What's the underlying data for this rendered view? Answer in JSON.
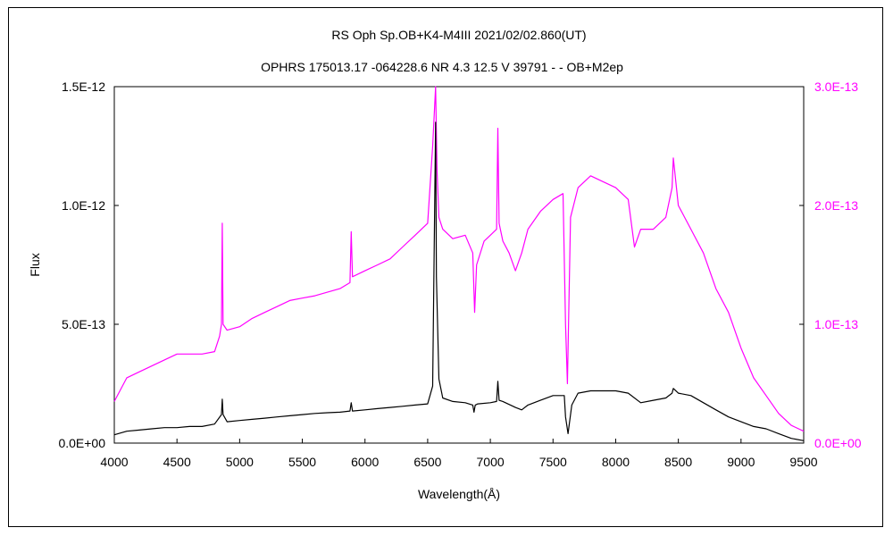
{
  "chart_data": {
    "type": "line",
    "title": "RS Oph    Sp.OB+K4-M4III    2021/02/02.860(UT)",
    "subtitle": "OPHRS 175013.17 -064228.6 NR 4.3 12.5 V 39791 - - OB+M2ep",
    "xlabel": "Wavelength(Å)",
    "ylabel": "Flux",
    "xlim": [
      4000,
      9500
    ],
    "ylim": [
      0,
      1.5e-12
    ],
    "ylim_right": [
      0,
      3e-13
    ],
    "x_ticks": [
      "4000",
      "4500",
      "5000",
      "5500",
      "6000",
      "6500",
      "7000",
      "7500",
      "8000",
      "8500",
      "9000",
      "9500"
    ],
    "y_ticks_left": [
      "0.0E+00",
      "5.0E-13",
      "1.0E-12",
      "1.5E-12"
    ],
    "y_ticks_right": [
      "0.0E+00",
      "1.0E-13",
      "2.0E-13",
      "3.0E-13"
    ],
    "grid": false,
    "legend": "none",
    "series": [
      {
        "axis": "left",
        "color": "#000000",
        "x": [
          4000,
          4100,
          4200,
          4300,
          4400,
          4500,
          4600,
          4700,
          4800,
          4855,
          4861,
          4868,
          4900,
          5000,
          5100,
          5200,
          5300,
          5400,
          5500,
          5600,
          5700,
          5800,
          5880,
          5890,
          5900,
          6000,
          6100,
          6200,
          6300,
          6400,
          6500,
          6540,
          6563,
          6570,
          6590,
          6620,
          6700,
          6800,
          6860,
          6870,
          6880,
          6900,
          7000,
          7050,
          7060,
          7070,
          7100,
          7200,
          7250,
          7300,
          7400,
          7500,
          7590,
          7600,
          7620,
          7650,
          7700,
          7800,
          7900,
          8000,
          8100,
          8200,
          8300,
          8400,
          8450,
          8460,
          8500,
          8600,
          8700,
          8800,
          8900,
          9000,
          9100,
          9200,
          9300,
          9400,
          9500
        ],
        "y": [
          3.5e-14,
          5e-14,
          5.5e-14,
          6e-14,
          6.5e-14,
          6.5e-14,
          7e-14,
          7e-14,
          8e-14,
          1.2e-13,
          1.85e-13,
          1.2e-13,
          9e-14,
          9.5e-14,
          1e-13,
          1.05e-13,
          1.1e-13,
          1.15e-13,
          1.2e-13,
          1.25e-13,
          1.28e-13,
          1.3e-13,
          1.35e-13,
          1.7e-13,
          1.35e-13,
          1.4e-13,
          1.45e-13,
          1.5e-13,
          1.55e-13,
          1.6e-13,
          1.65e-13,
          2.4e-13,
          1.35e-12,
          7e-13,
          2.7e-13,
          1.9e-13,
          1.75e-13,
          1.7e-13,
          1.6e-13,
          1.3e-13,
          1.6e-13,
          1.65e-13,
          1.7e-13,
          1.75e-13,
          2.6e-13,
          1.8e-13,
          1.75e-13,
          1.5e-13,
          1.4e-13,
          1.6e-13,
          1.8e-13,
          2e-13,
          2e-13,
          1.1e-13,
          4e-14,
          1.6e-13,
          2.1e-13,
          2.2e-13,
          2.2e-13,
          2.2e-13,
          2.1e-13,
          1.7e-13,
          1.8e-13,
          1.9e-13,
          2.1e-13,
          2.3e-13,
          2.1e-13,
          2e-13,
          1.7e-13,
          1.4e-13,
          1.1e-13,
          9e-14,
          7e-14,
          6e-14,
          4e-14,
          2e-14,
          1e-14
        ]
      },
      {
        "axis": "right",
        "color": "#ff00ff",
        "x": [
          4000,
          4050,
          4100,
          4200,
          4300,
          4400,
          4500,
          4600,
          4700,
          4800,
          4840,
          4855,
          4861,
          4868,
          4900,
          5000,
          5100,
          5200,
          5300,
          5400,
          5500,
          5600,
          5700,
          5800,
          5880,
          5890,
          5900,
          6000,
          6100,
          6200,
          6300,
          6400,
          6500,
          6540,
          6563,
          6575,
          6590,
          6620,
          6700,
          6800,
          6860,
          6875,
          6890,
          6950,
          7000,
          7050,
          7060,
          7070,
          7100,
          7150,
          7200,
          7250,
          7300,
          7400,
          7500,
          7580,
          7600,
          7615,
          7640,
          7700,
          7800,
          7900,
          8000,
          8100,
          8150,
          8200,
          8300,
          8400,
          8450,
          8460,
          8500,
          8600,
          8700,
          8800,
          8900,
          9000,
          9100,
          9200,
          9300,
          9400,
          9500
        ],
        "y": [
          3.5e-14,
          4.5e-14,
          5.5e-14,
          6e-14,
          6.5e-14,
          7e-14,
          7.5e-14,
          7.5e-14,
          7.5e-14,
          7.7e-14,
          9e-14,
          1e-13,
          1.85e-13,
          1e-13,
          9.5e-14,
          9.8e-14,
          1.05e-13,
          1.1e-13,
          1.15e-13,
          1.2e-13,
          1.22e-13,
          1.24e-13,
          1.27e-13,
          1.3e-13,
          1.35e-13,
          1.78e-13,
          1.4e-13,
          1.45e-13,
          1.5e-13,
          1.55e-13,
          1.65e-13,
          1.75e-13,
          1.85e-13,
          2.5e-13,
          3e-13,
          2.3e-13,
          1.9e-13,
          1.8e-13,
          1.72e-13,
          1.75e-13,
          1.6e-13,
          1.1e-13,
          1.5e-13,
          1.7e-13,
          1.75e-13,
          1.8e-13,
          2.65e-13,
          1.85e-13,
          1.7e-13,
          1.6e-13,
          1.45e-13,
          1.6e-13,
          1.8e-13,
          1.95e-13,
          2.05e-13,
          2.1e-13,
          1e-13,
          5e-14,
          1.9e-13,
          2.15e-13,
          2.25e-13,
          2.2e-13,
          2.15e-13,
          2.05e-13,
          1.65e-13,
          1.8e-13,
          1.8e-13,
          1.9e-13,
          2.15e-13,
          2.4e-13,
          2e-13,
          1.8e-13,
          1.6e-13,
          1.3e-13,
          1.1e-13,
          8e-14,
          5.5e-14,
          4e-14,
          2.5e-14,
          1.5e-14,
          1e-14
        ]
      }
    ]
  }
}
